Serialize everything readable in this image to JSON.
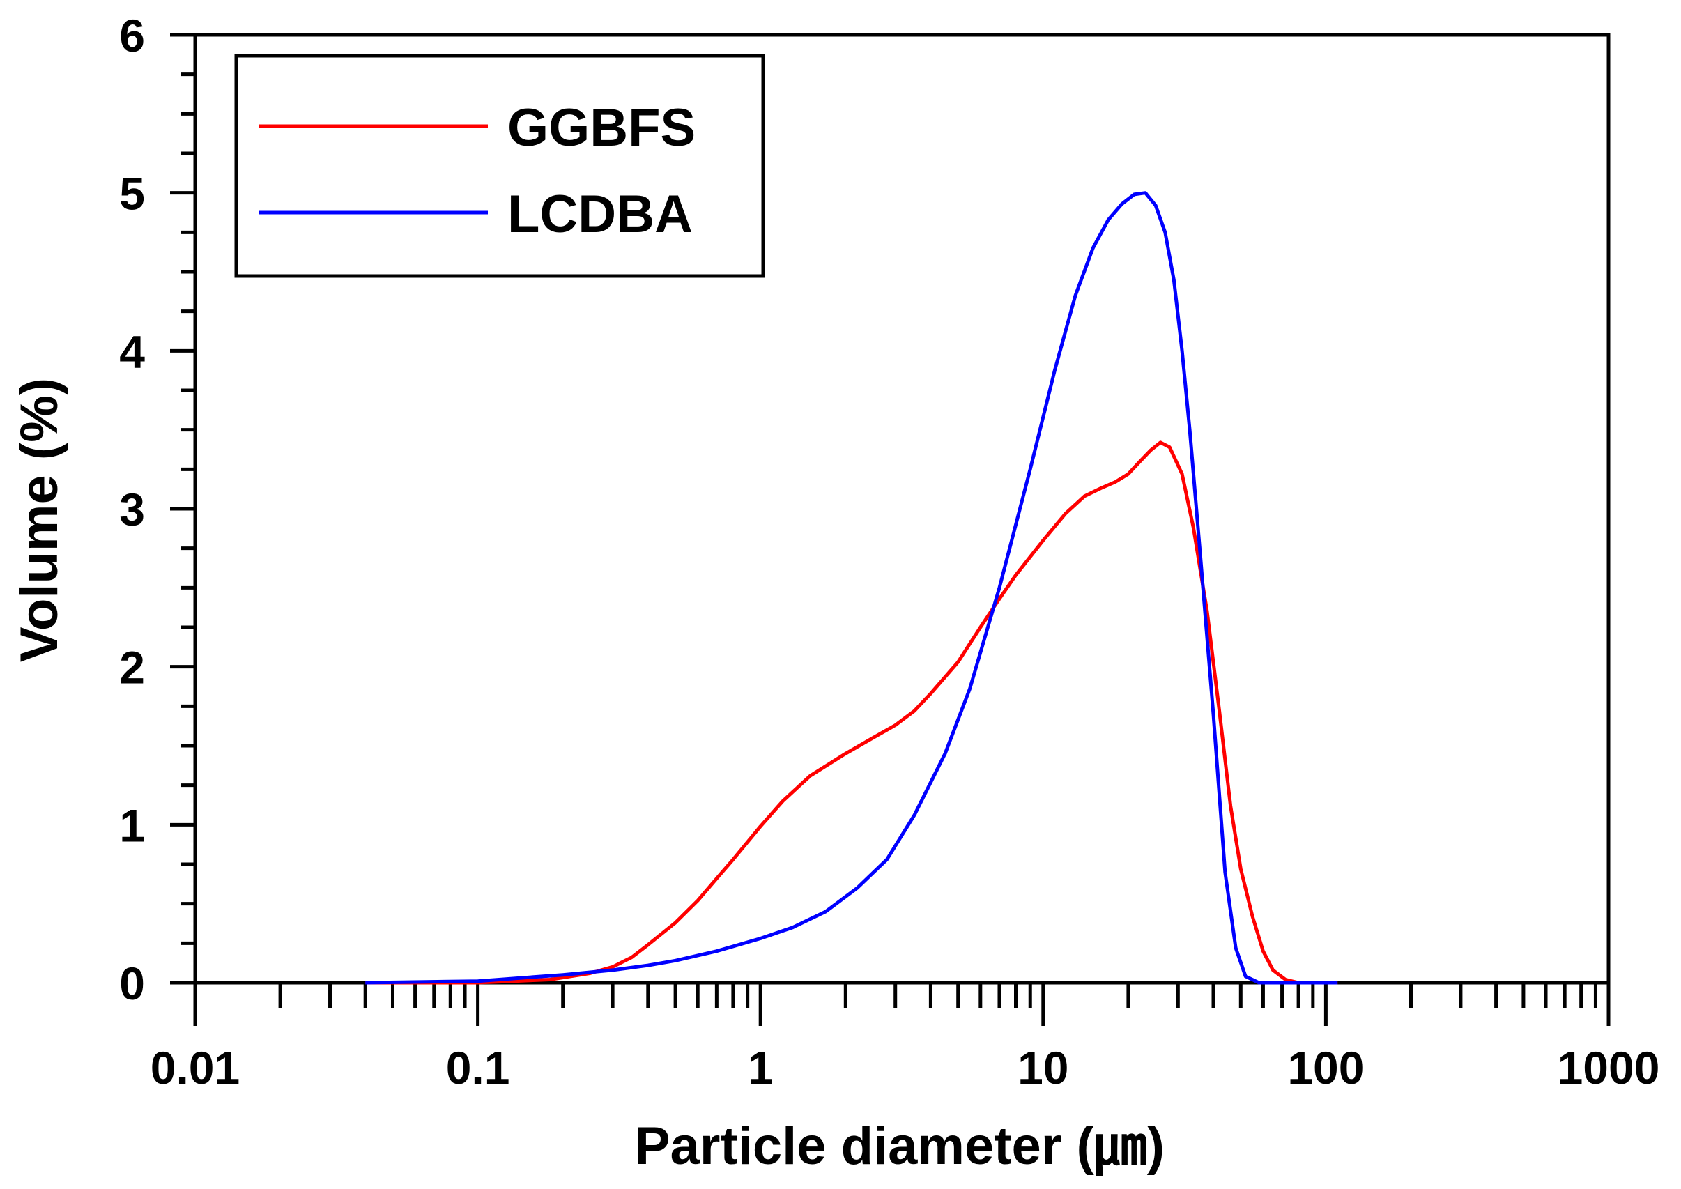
{
  "chart_data": {
    "type": "line",
    "title": "",
    "xlabel": "Particle diameter (㎛)",
    "ylabel": "Volume (%)",
    "xscale": "log",
    "xlim": [
      0.01,
      1000
    ],
    "ylim": [
      0,
      6
    ],
    "x_ticks": [
      {
        "value": 0.01,
        "label": "0.01"
      },
      {
        "value": 0.1,
        "label": "0.1"
      },
      {
        "value": 1,
        "label": "1"
      },
      {
        "value": 10,
        "label": "10"
      },
      {
        "value": 100,
        "label": "100"
      },
      {
        "value": 1000,
        "label": "1000"
      }
    ],
    "y_ticks": [
      {
        "value": 0,
        "label": "0"
      },
      {
        "value": 1,
        "label": "1"
      },
      {
        "value": 2,
        "label": "2"
      },
      {
        "value": 3,
        "label": "3"
      },
      {
        "value": 4,
        "label": "4"
      },
      {
        "value": 5,
        "label": "5"
      },
      {
        "value": 6,
        "label": "6"
      }
    ],
    "legend_position": "top-left",
    "grid": false,
    "series": [
      {
        "name": "GGBFS",
        "color": "#ff0000",
        "points": [
          [
            0.04,
            0.0
          ],
          [
            0.1,
            0.0
          ],
          [
            0.18,
            0.02
          ],
          [
            0.25,
            0.06
          ],
          [
            0.3,
            0.1
          ],
          [
            0.35,
            0.16
          ],
          [
            0.4,
            0.24
          ],
          [
            0.5,
            0.38
          ],
          [
            0.6,
            0.52
          ],
          [
            0.7,
            0.66
          ],
          [
            0.8,
            0.78
          ],
          [
            1.0,
            0.99
          ],
          [
            1.2,
            1.15
          ],
          [
            1.5,
            1.31
          ],
          [
            2.0,
            1.45
          ],
          [
            2.5,
            1.55
          ],
          [
            3.0,
            1.63
          ],
          [
            3.5,
            1.72
          ],
          [
            4.0,
            1.83
          ],
          [
            5.0,
            2.03
          ],
          [
            6.0,
            2.25
          ],
          [
            7.0,
            2.43
          ],
          [
            8.0,
            2.58
          ],
          [
            10.0,
            2.8
          ],
          [
            12.0,
            2.97
          ],
          [
            14.0,
            3.08
          ],
          [
            16.0,
            3.13
          ],
          [
            18.0,
            3.17
          ],
          [
            20.0,
            3.22
          ],
          [
            22.0,
            3.3
          ],
          [
            24.0,
            3.37
          ],
          [
            26.0,
            3.42
          ],
          [
            28.0,
            3.39
          ],
          [
            31.0,
            3.22
          ],
          [
            34.0,
            2.88
          ],
          [
            38.0,
            2.35
          ],
          [
            42.0,
            1.72
          ],
          [
            46.0,
            1.12
          ],
          [
            50.0,
            0.72
          ],
          [
            55.0,
            0.42
          ],
          [
            60.0,
            0.2
          ],
          [
            65.0,
            0.08
          ],
          [
            72.0,
            0.02
          ],
          [
            80.0,
            0.0
          ],
          [
            110.0,
            0.0
          ]
        ]
      },
      {
        "name": "LCDBA",
        "color": "#0000ff",
        "points": [
          [
            0.04,
            0.0
          ],
          [
            0.1,
            0.01
          ],
          [
            0.2,
            0.05
          ],
          [
            0.3,
            0.08
          ],
          [
            0.4,
            0.11
          ],
          [
            0.5,
            0.14
          ],
          [
            0.7,
            0.2
          ],
          [
            1.0,
            0.28
          ],
          [
            1.3,
            0.35
          ],
          [
            1.7,
            0.45
          ],
          [
            2.2,
            0.6
          ],
          [
            2.8,
            0.78
          ],
          [
            3.5,
            1.06
          ],
          [
            4.5,
            1.45
          ],
          [
            5.5,
            1.86
          ],
          [
            7.0,
            2.5
          ],
          [
            9.0,
            3.25
          ],
          [
            11.0,
            3.88
          ],
          [
            13.0,
            4.35
          ],
          [
            15.0,
            4.65
          ],
          [
            17.0,
            4.83
          ],
          [
            19.0,
            4.93
          ],
          [
            21.0,
            4.99
          ],
          [
            23.0,
            5.0
          ],
          [
            25.0,
            4.92
          ],
          [
            27.0,
            4.75
          ],
          [
            29.0,
            4.45
          ],
          [
            31.0,
            4.0
          ],
          [
            33.0,
            3.5
          ],
          [
            36.0,
            2.7
          ],
          [
            40.0,
            1.7
          ],
          [
            44.0,
            0.7
          ],
          [
            48.0,
            0.22
          ],
          [
            52.0,
            0.04
          ],
          [
            58.0,
            0.0
          ],
          [
            110.0,
            0.0
          ]
        ]
      }
    ]
  }
}
